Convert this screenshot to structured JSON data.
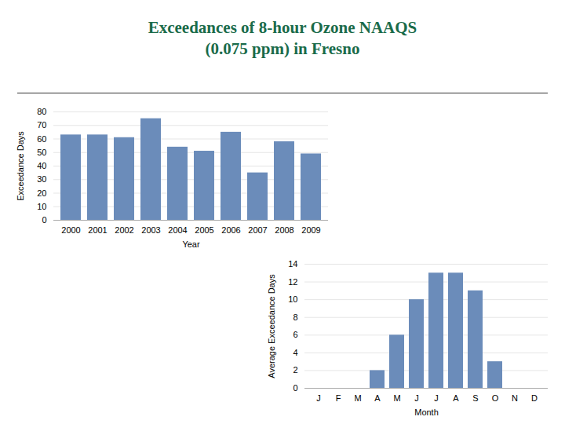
{
  "chart_data": [
    {
      "type": "bar",
      "title": "Exceedances of 8-hour Ozone NAAQS\n(0.075 ppm) in Fresno",
      "categories": [
        "2000",
        "2001",
        "2002",
        "2003",
        "2004",
        "2005",
        "2006",
        "2007",
        "2008",
        "2009"
      ],
      "values": [
        63,
        63,
        61,
        75,
        54,
        51,
        65,
        35,
        58,
        49
      ],
      "color": "#6b8cba",
      "xlabel": "Year",
      "ylabel": "Exceedance Days",
      "ylim": [
        0,
        80
      ],
      "yticks": [
        0,
        10,
        20,
        30,
        40,
        50,
        60,
        70,
        80
      ],
      "grid": true
    },
    {
      "type": "bar",
      "categories": [
        "J",
        "F",
        "M",
        "A",
        "M",
        "J",
        "J",
        "A",
        "S",
        "O",
        "N",
        "D"
      ],
      "values": [
        0,
        0,
        0,
        2,
        6,
        10,
        13,
        13,
        11,
        3,
        0,
        0
      ],
      "color": "#6b8cba",
      "xlabel": "Month",
      "ylabel": "Average Exceedance Days",
      "ylim": [
        0,
        14
      ],
      "yticks": [
        0,
        2,
        4,
        6,
        8,
        10,
        12,
        14
      ],
      "grid": true
    }
  ]
}
